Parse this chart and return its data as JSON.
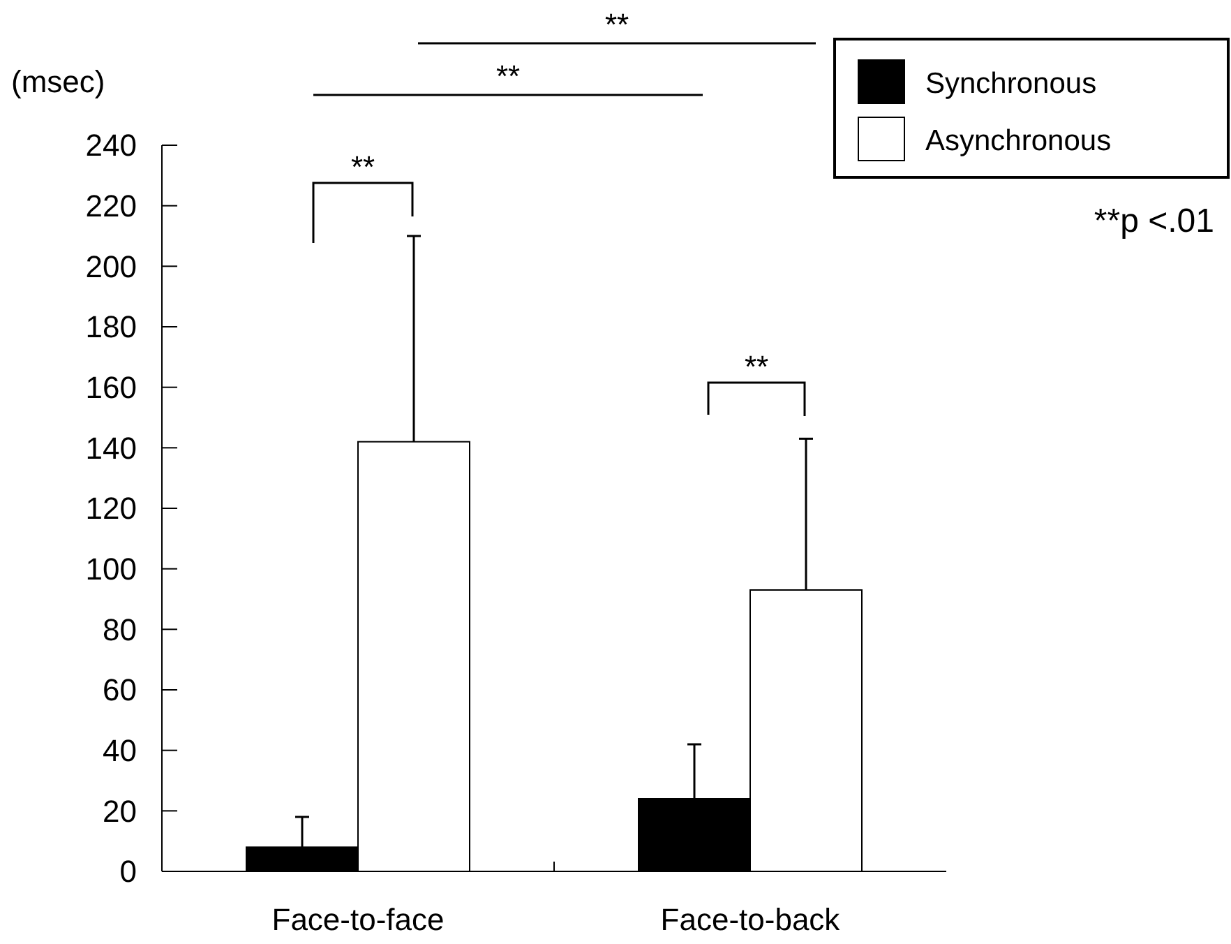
{
  "chart_data": {
    "type": "bar",
    "ylabel": "(msec)",
    "categories": [
      "Face-to-face",
      "Face-to-back"
    ],
    "series": [
      {
        "name": "Synchronous",
        "color": "#000000",
        "values": [
          8,
          24
        ],
        "errors": [
          [
            8,
            18
          ],
          [
            24,
            42
          ]
        ]
      },
      {
        "name": "Asynchronous",
        "color": "#ffffff",
        "values": [
          142,
          93
        ],
        "errors": [
          [
            142,
            210
          ],
          [
            93,
            143
          ]
        ]
      }
    ],
    "ylim": [
      0,
      240
    ],
    "yticks": [
      0,
      20,
      40,
      60,
      80,
      100,
      120,
      140,
      160,
      180,
      200,
      220,
      240
    ],
    "grid": false,
    "legend": "top right",
    "annotations": [
      "**",
      "**",
      "**",
      "**",
      "**p <.01"
    ]
  }
}
